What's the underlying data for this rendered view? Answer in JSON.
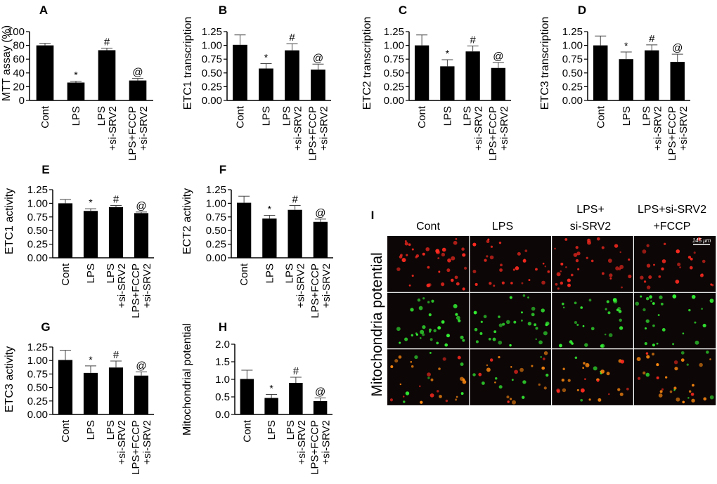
{
  "chart_data": [
    {
      "panel": "A",
      "type": "bar",
      "ylabel": "MTT assay (%)",
      "categories": [
        "Cont",
        "LPS",
        "LPS\n+si-SRV2",
        "LPS+FCCP\n+si-SRV2"
      ],
      "values": [
        80,
        26,
        73,
        29
      ],
      "errors": [
        3,
        2,
        3,
        3
      ],
      "markers": [
        "",
        "*",
        "#",
        "@"
      ],
      "yticks": [
        "0",
        "20",
        "40",
        "60",
        "80",
        "100"
      ],
      "ylim": [
        0,
        100
      ]
    },
    {
      "panel": "B",
      "type": "bar",
      "ylabel": "ETC1 transcription",
      "categories": [
        "Cont",
        "LPS",
        "LPS\n+si-SRV2",
        "LPS+FCCP\n+si-SRV2"
      ],
      "values": [
        1.01,
        0.58,
        0.91,
        0.56
      ],
      "errors": [
        0.18,
        0.09,
        0.12,
        0.1
      ],
      "markers": [
        "",
        "*",
        "#",
        "@"
      ],
      "yticks": [
        "0.00",
        "0.25",
        "0.50",
        "0.75",
        "1.00",
        "1.25"
      ],
      "ylim": [
        0,
        1.25
      ]
    },
    {
      "panel": "C",
      "type": "bar",
      "ylabel": "ETC2 transcription",
      "categories": [
        "Cont",
        "LPS",
        "LPS\n+si-SRV2",
        "LPS+FCCP\n+si-SRV2"
      ],
      "values": [
        1.0,
        0.62,
        0.89,
        0.59
      ],
      "errors": [
        0.19,
        0.12,
        0.1,
        0.1
      ],
      "markers": [
        "",
        "*",
        "#",
        "@"
      ],
      "yticks": [
        "0.00",
        "0.25",
        "0.50",
        "0.75",
        "1.00",
        "1.25"
      ],
      "ylim": [
        0,
        1.25
      ]
    },
    {
      "panel": "D",
      "type": "bar",
      "ylabel": "ETC3 transcription",
      "categories": [
        "Cont",
        "LPS",
        "LPS\n+si-SRV2",
        "LPS+FCCP\n+si-SRV2"
      ],
      "values": [
        1.0,
        0.75,
        0.91,
        0.7
      ],
      "errors": [
        0.17,
        0.13,
        0.1,
        0.14
      ],
      "markers": [
        "",
        "*",
        "#",
        "@"
      ],
      "yticks": [
        "0.00",
        "0.25",
        "0.50",
        "0.75",
        "1.00",
        "1.25"
      ],
      "ylim": [
        0,
        1.25
      ]
    },
    {
      "panel": "E",
      "type": "bar",
      "ylabel": "ETC1 activity",
      "categories": [
        "Cont",
        "LPS",
        "LPS\n+si-SRV2",
        "LPS+FCCP\n+si-SRV2"
      ],
      "values": [
        1.0,
        0.86,
        0.93,
        0.82
      ],
      "errors": [
        0.07,
        0.04,
        0.03,
        0.02
      ],
      "markers": [
        "",
        "*",
        "#",
        "@"
      ],
      "yticks": [
        "0.00",
        "0.25",
        "0.50",
        "0.75",
        "1.00",
        "1.25"
      ],
      "ylim": [
        0,
        1.25
      ]
    },
    {
      "panel": "F",
      "type": "bar",
      "ylabel": "ECT2 activity",
      "categories": [
        "Cont",
        "LPS",
        "LPS\n+si-SRV2",
        "LPS+FCCP\n+si-SRV2"
      ],
      "values": [
        1.01,
        0.72,
        0.88,
        0.66
      ],
      "errors": [
        0.12,
        0.06,
        0.08,
        0.05
      ],
      "markers": [
        "",
        "*",
        "#",
        "@"
      ],
      "yticks": [
        "0.00",
        "0.25",
        "0.50",
        "0.75",
        "1.00",
        "1.25"
      ],
      "ylim": [
        0,
        1.25
      ]
    },
    {
      "panel": "G",
      "type": "bar",
      "ylabel": "ETC3 activity",
      "categories": [
        "Cont",
        "LPS",
        "LPS\n+si-SRV2",
        "LPS+FCCP\n+si-SRV2"
      ],
      "values": [
        1.01,
        0.77,
        0.87,
        0.72
      ],
      "errors": [
        0.18,
        0.13,
        0.12,
        0.07
      ],
      "markers": [
        "",
        "*",
        "#",
        "@"
      ],
      "yticks": [
        "0.00",
        "0.25",
        "0.50",
        "0.75",
        "1.00",
        "1.25"
      ],
      "ylim": [
        0,
        1.25
      ]
    },
    {
      "panel": "H",
      "type": "bar",
      "ylabel": "Mitochondrial potential",
      "categories": [
        "Cont",
        "LPS",
        "LPS\n+si-SRV2",
        "LPS+FCCP\n+si-SRV2"
      ],
      "values": [
        1.01,
        0.47,
        0.9,
        0.38
      ],
      "errors": [
        0.25,
        0.1,
        0.16,
        0.09
      ],
      "markers": [
        "",
        "*",
        "#",
        "@"
      ],
      "yticks": [
        "0.0",
        "0.5",
        "1.0",
        "1.5",
        "2.0"
      ],
      "ylim": [
        0,
        2.0
      ]
    }
  ],
  "panel_i": {
    "letter": "I",
    "row_label": "Mitochondria potential",
    "column_headers": [
      [
        "Cont"
      ],
      [
        "LPS"
      ],
      [
        "LPS+",
        "si-SRV2"
      ],
      [
        "LPS+si-SRV2",
        "+FCCP"
      ]
    ],
    "scale_bar": "145 μm",
    "rows": [
      "red",
      "green",
      "merge"
    ],
    "colors": {
      "red": "#ff2a20",
      "green": "#33ee33",
      "orange": "#ff8a10",
      "background": "#0d0606"
    }
  }
}
